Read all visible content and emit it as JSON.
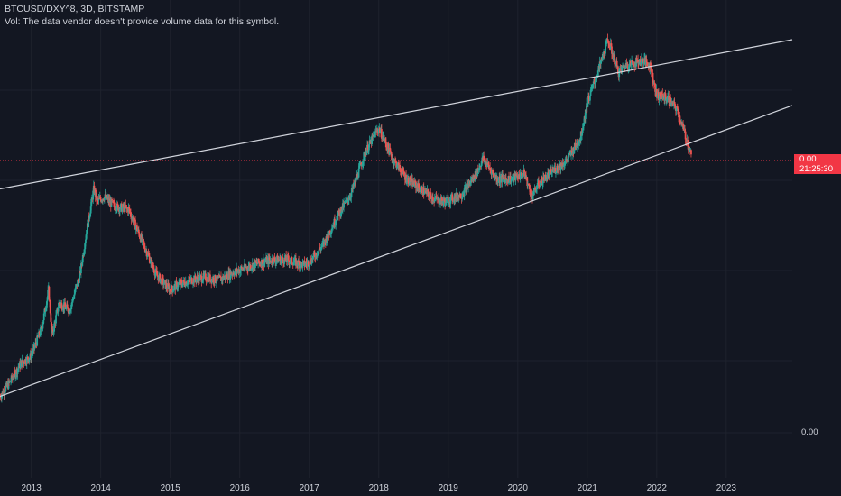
{
  "legend": {
    "symbol_line": "BTCUSD/DXY^8, 3D, BITSTAMP",
    "volume_line": "Vol: The data vendor doesn't provide volume data for this symbol."
  },
  "price_label": {
    "value": "0.00",
    "countdown": "21:25:30",
    "color": "#f23645"
  },
  "price_axis": {
    "ticks": [
      "0.00"
    ]
  },
  "colors": {
    "background": "#131722",
    "up": "#26a69a",
    "down": "#ef5350",
    "trendline": "#d1d4dc",
    "grid": "#1e222d",
    "current_price_line": "#f23645"
  },
  "chart_data": {
    "type": "candlestick",
    "title": "BTCUSD/DXY^8, 3D, BITSTAMP",
    "xlabel": "",
    "ylabel": "",
    "x_ticks": [
      "2013",
      "2014",
      "2015",
      "2016",
      "2017",
      "2018",
      "2019",
      "2020",
      "2021",
      "2022",
      "2023"
    ],
    "x_range": [
      2012.55,
      2023.95
    ],
    "y_scale": "log",
    "y_range": [
      0,
      1
    ],
    "grid": true,
    "current_value": "0.00",
    "series": [
      {
        "name": "price",
        "x": [
          2012.55,
          2012.7,
          2012.85,
          2013.0,
          2013.15,
          2013.25,
          2013.3,
          2013.4,
          2013.55,
          2013.7,
          2013.8,
          2013.9,
          2013.95,
          2014.05,
          2014.2,
          2014.4,
          2014.6,
          2014.8,
          2015.0,
          2015.1,
          2015.3,
          2015.5,
          2015.7,
          2015.9,
          2016.1,
          2016.3,
          2016.5,
          2016.7,
          2016.9,
          2017.0,
          2017.2,
          2017.4,
          2017.6,
          2017.8,
          2017.95,
          2018.0,
          2018.2,
          2018.4,
          2018.6,
          2018.8,
          2018.95,
          2019.2,
          2019.4,
          2019.5,
          2019.7,
          2019.9,
          2020.1,
          2020.2,
          2020.3,
          2020.5,
          2020.7,
          2020.9,
          2021.0,
          2021.15,
          2021.3,
          2021.45,
          2021.55,
          2021.7,
          2021.8,
          2021.9,
          2022.0,
          2022.15,
          2022.3,
          2022.4,
          2022.5
        ],
        "y": [
          0.14,
          0.2,
          0.27,
          0.3,
          0.41,
          0.56,
          0.38,
          0.51,
          0.48,
          0.62,
          0.8,
          0.96,
          0.91,
          0.93,
          0.89,
          0.88,
          0.75,
          0.62,
          0.56,
          0.58,
          0.6,
          0.61,
          0.6,
          0.63,
          0.65,
          0.67,
          0.68,
          0.68,
          0.66,
          0.67,
          0.74,
          0.85,
          0.94,
          1.1,
          1.18,
          1.2,
          1.08,
          1.0,
          0.96,
          0.92,
          0.91,
          0.94,
          1.02,
          1.08,
          1.0,
          1.0,
          1.02,
          0.93,
          0.98,
          1.03,
          1.07,
          1.16,
          1.3,
          1.42,
          1.55,
          1.42,
          1.45,
          1.46,
          1.47,
          1.45,
          1.33,
          1.32,
          1.27,
          1.18,
          1.09
        ]
      }
    ],
    "trendlines": [
      {
        "name": "upper-channel",
        "from": [
          2012.55,
          0.96
        ],
        "to": [
          2023.95,
          1.55
        ]
      },
      {
        "name": "lower-channel",
        "from": [
          2012.55,
          0.14
        ],
        "to": [
          2023.95,
          1.29
        ]
      }
    ]
  }
}
